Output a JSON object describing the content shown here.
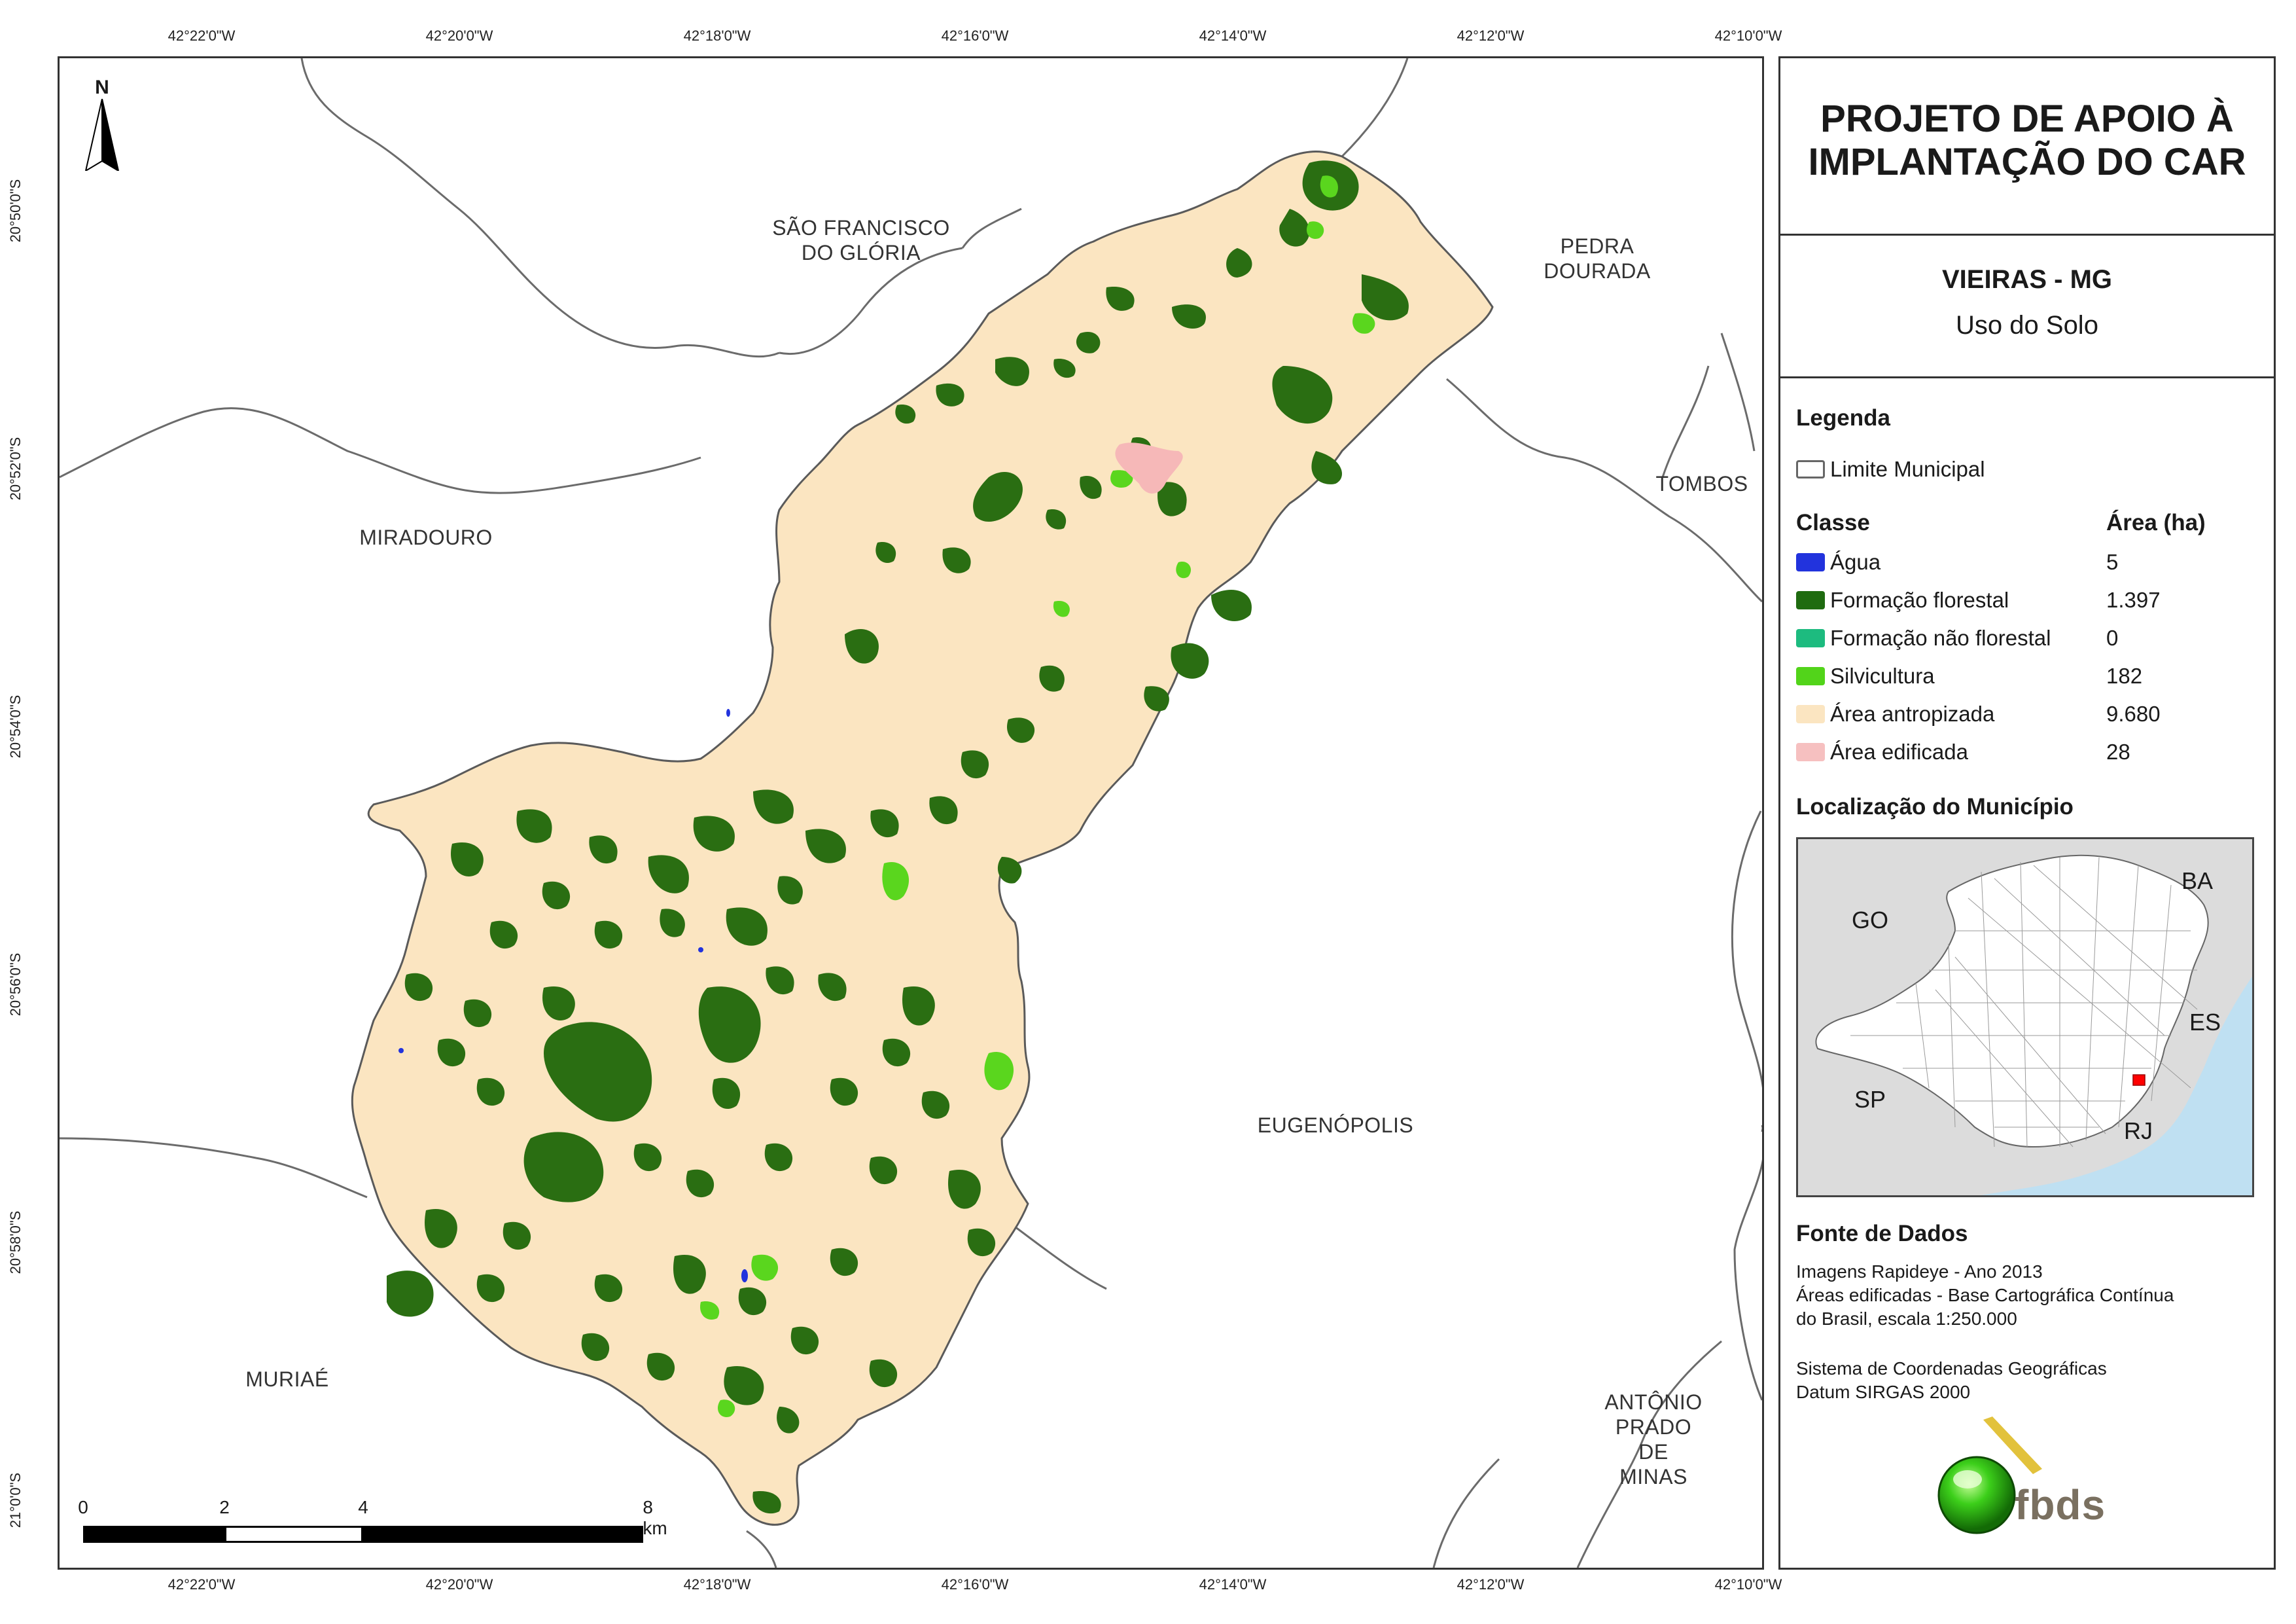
{
  "coords": {
    "lon_labels": [
      "42°22'0\"W",
      "42°20'0\"W",
      "42°18'0\"W",
      "42°16'0\"W",
      "42°14'0\"W",
      "42°12'0\"W",
      "42°10'0\"W"
    ],
    "lat_labels": [
      "20°50'0\"S",
      "20°52'0\"S",
      "20°54'0\"S",
      "20°56'0\"S",
      "20°58'0\"S",
      "21°0'0\"S"
    ]
  },
  "map": {
    "north_label": "N",
    "places": {
      "sao_francisco": "SÃO FRANCISCO\nDO GLÓRIA",
      "pedra_dourada": "PEDRA\nDOURADA",
      "miradouro": "MIRADOURO",
      "tombos": "TOMBOS",
      "eugenopolis": "EUGENÓPOLIS",
      "muriae": "MURIAÉ",
      "antonio_prado": "ANTÔNIO\nPRADO DE\nMINAS"
    },
    "scale": {
      "labels": [
        "0",
        "2",
        "4",
        "8 km"
      ]
    },
    "colors": {
      "antropizada": "#fbe5c1",
      "floresta": "#2a6e12",
      "silvicultura": "#5ad61e",
      "edificada": "#f6b8b8",
      "agua": "#2233dd",
      "boundary": "#5a5a5a"
    }
  },
  "panel": {
    "title": "PROJETO DE APOIO À\nIMPLANTAÇÃO DO CAR",
    "subtitle": "VIEIRAS - MG",
    "theme": "Uso do Solo",
    "legend_heading": "Legenda",
    "boundary_label": "Limite Municipal",
    "class_heading": "Classe",
    "area_heading": "Área (ha)",
    "classes": [
      {
        "label": "Água",
        "value": "5",
        "color": "#2233dd"
      },
      {
        "label": "Formação florestal",
        "value": "1.397",
        "color": "#1f6b10"
      },
      {
        "label": "Formação não florestal",
        "value": "0",
        "color": "#1dbb7f"
      },
      {
        "label": "Silvicultura",
        "value": "182",
        "color": "#52d41a"
      },
      {
        "label": "Área antropizada",
        "value": "9.680",
        "color": "#fbe5c1"
      },
      {
        "label": "Área edificada",
        "value": "28",
        "color": "#f6c0c0"
      }
    ],
    "location_heading": "Localização do Município",
    "location_states": {
      "ba": "BA",
      "go": "GO",
      "es": "ES",
      "sp": "SP",
      "rj": "RJ"
    },
    "source_heading": "Fonte de Dados",
    "source_lines": [
      "Imagens Rapideye - Ano 2013",
      "Áreas edificadas - Base Cartográfica Contínua",
      "do Brasil, escala 1:250.000",
      "Sistema de Coordenadas Geográficas",
      "Datum SIRGAS 2000"
    ],
    "logo_text": "fbds"
  }
}
